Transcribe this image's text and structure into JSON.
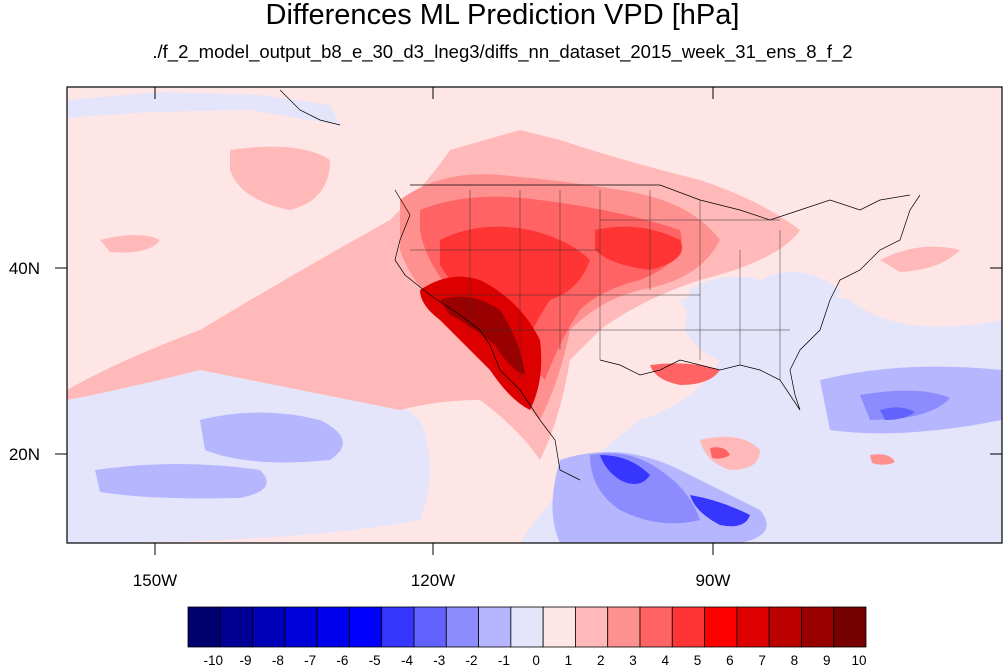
{
  "title": "Differences ML Prediction VPD [hPa]",
  "subtitle": "./f_2_model_output_b8_e_30_d3_lneg3/diffs_nn_dataset_2015_week_31_ens_8_f_2",
  "lat_labels": [
    "40N",
    "20N"
  ],
  "lon_labels": [
    "150W",
    "120W",
    "90W"
  ],
  "colorbar": {
    "labels": [
      "-10",
      "-9",
      "-8",
      "-7",
      "-6",
      "-5",
      "-4",
      "-3",
      "-2",
      "-1",
      "0",
      "1",
      "2",
      "3",
      "4",
      "5",
      "6",
      "7",
      "8",
      "9",
      "10"
    ],
    "colors": [
      "#00006e",
      "#000094",
      "#0000b8",
      "#0000d8",
      "#0000ee",
      "#0000ff",
      "#3636ff",
      "#6262ff",
      "#8c8cff",
      "#b6b6ff",
      "#e4e4fb",
      "#ffe6e6",
      "#ffb9b9",
      "#ff9090",
      "#ff6363",
      "#ff3535",
      "#ff0000",
      "#dd0000",
      "#bb0000",
      "#990000",
      "#770000"
    ]
  }
}
